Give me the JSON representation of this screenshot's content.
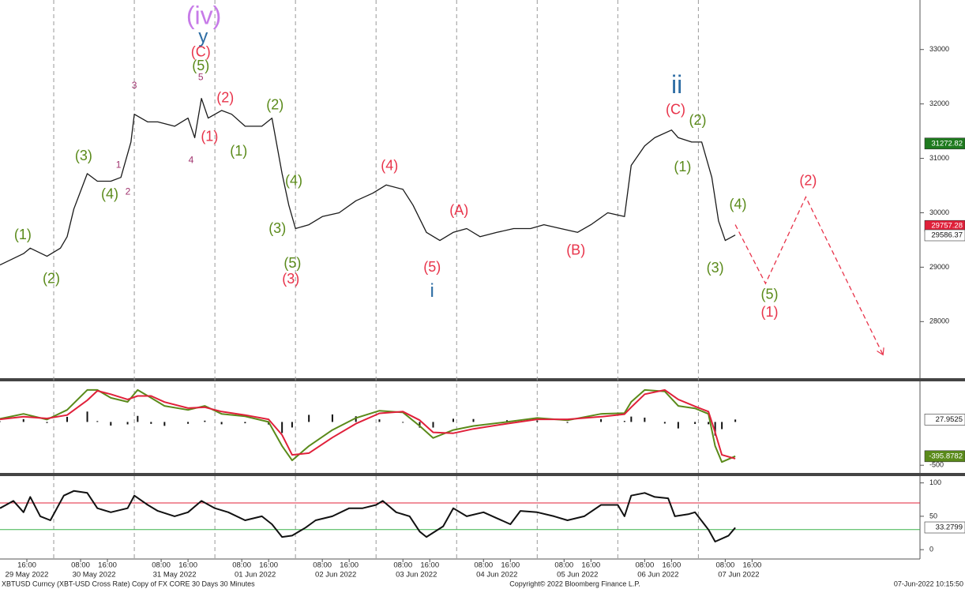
{
  "chart_data": [
    {
      "type": "line",
      "x": [
        8,
        15,
        17,
        22,
        26,
        28,
        30,
        34,
        37,
        41,
        44,
        47,
        48,
        52,
        55,
        60,
        64,
        66,
        68,
        70,
        74,
        77,
        81,
        86,
        89,
        92,
        94,
        96,
        100,
        104,
        109,
        114,
        119,
        123,
        128,
        131,
        135,
        139,
        143,
        147,
        151,
        156,
        161,
        166,
        170,
        175,
        180,
        184,
        189,
        194,
        196,
        200,
        203,
        208,
        210,
        214,
        217,
        220,
        222,
        224,
        227
      ],
      "series": [
        {
          "color": "#1a1a1a",
          "values": [
            29040,
            29250,
            29350,
            29200,
            29350,
            29560,
            30070,
            30720,
            30580,
            30580,
            30650,
            31300,
            31810,
            31670,
            31670,
            31590,
            31740,
            31380,
            32100,
            31740,
            31880,
            31810,
            31590,
            31590,
            31740,
            30720,
            30140,
            29710,
            29780,
            29930,
            30000,
            30220,
            30360,
            30510,
            30430,
            30140,
            29640,
            29490,
            29640,
            29710,
            29560,
            29640,
            29710,
            29710,
            29780,
            29710,
            29640,
            29780,
            30000,
            29930,
            30870,
            31230,
            31380,
            31520,
            31380,
            31300,
            31300,
            30650,
            29850,
            29490,
            29590
          ]
        }
      ],
      "xlim": [
        8,
        282
      ],
      "ylim": [
        26960,
        33910
      ],
      "yticks": [
        28000,
        29000,
        30000,
        31000,
        32000,
        33000
      ],
      "xticks": [
        {
          "value": 16,
          "label": "16:00"
        },
        {
          "value": 32,
          "label": "08:00"
        },
        {
          "value": 40,
          "label": "16:00"
        },
        {
          "value": 56,
          "label": "08:00"
        },
        {
          "value": 64,
          "label": "16:00"
        },
        {
          "value": 80,
          "label": "08:00"
        },
        {
          "value": 88,
          "label": "16:00"
        },
        {
          "value": 104,
          "label": "08:00"
        },
        {
          "value": 112,
          "label": "16:00"
        },
        {
          "value": 128,
          "label": "08:00"
        },
        {
          "value": 136,
          "label": "16:00"
        },
        {
          "value": 152,
          "label": "08:00"
        },
        {
          "value": 160,
          "label": "16:00"
        },
        {
          "value": 176,
          "label": "08:00"
        },
        {
          "value": 184,
          "label": "16:00"
        },
        {
          "value": 200,
          "label": "08:00"
        },
        {
          "value": 208,
          "label": "16:00"
        },
        {
          "value": 224,
          "label": "08:00"
        },
        {
          "value": 232,
          "label": "16:00"
        }
      ],
      "date_ticks": [
        {
          "value": 12,
          "label": "29 May 2022"
        },
        {
          "value": 36,
          "label": "30 May 2022"
        },
        {
          "value": 60,
          "label": "31 May 2022"
        },
        {
          "value": 84,
          "label": "01 Jun 2022"
        },
        {
          "value": 108,
          "label": "02 Jun 2022"
        },
        {
          "value": 132,
          "label": "03 Jun 2022"
        },
        {
          "value": 156,
          "label": "04 Jun 2022"
        },
        {
          "value": 180,
          "label": "05 Jun 2022"
        },
        {
          "value": 204,
          "label": "06 Jun 2022"
        },
        {
          "value": 228,
          "label": "07 Jun 2022"
        }
      ],
      "day_lines": [
        24,
        48,
        72,
        96,
        120,
        144,
        168,
        192,
        216
      ],
      "forecast": {
        "color": "#e8334a",
        "x": [
          227,
          236,
          248,
          271
        ],
        "values": [
          29780,
          28700,
          30290,
          27390
        ]
      },
      "price_tags": [
        {
          "value": 31272.82,
          "color": "#1e7a1e"
        },
        {
          "value": 29757.28,
          "color": "#e0203a"
        },
        {
          "value": 29586.37,
          "color": "#ffffff"
        }
      ],
      "annotations": [
        {
          "text": "(iv)",
          "x": 68.7,
          "y": 33590,
          "color": "#c77be8"
        },
        {
          "text": "y",
          "x": 68.5,
          "y": 33220,
          "color": "#2e6da4"
        },
        {
          "text": "(C)",
          "x": 67.8,
          "y": 32940,
          "color": "#e8334a"
        },
        {
          "text": "(5)",
          "x": 67.8,
          "y": 32690,
          "color": "#5a8a1a"
        },
        {
          "text": "5",
          "x": 67.8,
          "y": 32480,
          "color": "#a0336e"
        },
        {
          "text": "3",
          "x": 48,
          "y": 32330,
          "color": "#a0336e"
        },
        {
          "text": "4",
          "x": 64.9,
          "y": 30960,
          "color": "#a0336e"
        },
        {
          "text": "1",
          "x": 43.3,
          "y": 30870,
          "color": "#a0336e"
        },
        {
          "text": "2",
          "x": 46.1,
          "y": 30380,
          "color": "#a0336e"
        },
        {
          "text": "(2)",
          "x": 75.1,
          "y": 32100,
          "color": "#e8334a"
        },
        {
          "text": "(1)",
          "x": 70.4,
          "y": 31390,
          "color": "#e8334a"
        },
        {
          "text": "(1)",
          "x": 79.1,
          "y": 31120,
          "color": "#5a8a1a"
        },
        {
          "text": "(3)",
          "x": 32.9,
          "y": 31030,
          "color": "#5a8a1a"
        },
        {
          "text": "(4)",
          "x": 40.7,
          "y": 30330,
          "color": "#5a8a1a"
        },
        {
          "text": "(1)",
          "x": 14.8,
          "y": 29580,
          "color": "#5a8a1a"
        },
        {
          "text": "(2)",
          "x": 23.3,
          "y": 28780,
          "color": "#5a8a1a"
        },
        {
          "text": "(2)",
          "x": 89.9,
          "y": 31970,
          "color": "#5a8a1a"
        },
        {
          "text": "(4)",
          "x": 95.5,
          "y": 30580,
          "color": "#5a8a1a"
        },
        {
          "text": "(3)",
          "x": 90.6,
          "y": 29700,
          "color": "#5a8a1a"
        },
        {
          "text": "(5)",
          "x": 95.1,
          "y": 29060,
          "color": "#5a8a1a"
        },
        {
          "text": "(3)",
          "x": 94.6,
          "y": 28770,
          "color": "#e8334a"
        },
        {
          "text": "(4)",
          "x": 124,
          "y": 30850,
          "color": "#e8334a"
        },
        {
          "text": "(A)",
          "x": 144.7,
          "y": 30030,
          "color": "#e8334a"
        },
        {
          "text": "(5)",
          "x": 136.7,
          "y": 28990,
          "color": "#e8334a"
        },
        {
          "text": "i",
          "x": 136.7,
          "y": 28550,
          "color": "#2e6da4"
        },
        {
          "text": "(B)",
          "x": 179.5,
          "y": 29300,
          "color": "#e8334a"
        },
        {
          "text": "ii",
          "x": 209.6,
          "y": 32320,
          "color": "#2e6da4"
        },
        {
          "text": "(C)",
          "x": 209.2,
          "y": 31880,
          "color": "#e8334a"
        },
        {
          "text": "(2)",
          "x": 215.8,
          "y": 31690,
          "color": "#5a8a1a"
        },
        {
          "text": "(1)",
          "x": 211.3,
          "y": 30830,
          "color": "#5a8a1a"
        },
        {
          "text": "(4)",
          "x": 227.8,
          "y": 30140,
          "color": "#5a8a1a"
        },
        {
          "text": "(3)",
          "x": 221,
          "y": 28970,
          "color": "#5a8a1a"
        },
        {
          "text": "(5)",
          "x": 237.2,
          "y": 28490,
          "color": "#5a8a1a"
        },
        {
          "text": "(1)",
          "x": 237.2,
          "y": 28160,
          "color": "#e8334a"
        },
        {
          "text": "(2)",
          "x": 248.7,
          "y": 30580,
          "color": "#e8334a"
        }
      ]
    },
    {
      "type": "line",
      "x": [
        8,
        15,
        22,
        28,
        34,
        37,
        41,
        46,
        49,
        53,
        57,
        64,
        69,
        74,
        81,
        88,
        92,
        95,
        100,
        107,
        114,
        121,
        128,
        133,
        137,
        143,
        149,
        159,
        168,
        177,
        187,
        194,
        196,
        200,
        206,
        210,
        215,
        219,
        221,
        223,
        227
      ],
      "series": [
        {
          "color": "#5a8a1a",
          "values": [
            37,
            93,
            28,
            139,
            370,
            370,
            278,
            232,
            370,
            278,
            185,
            139,
            185,
            93,
            65,
            0,
            -278,
            -444,
            -278,
            -93,
            46,
            130,
            111,
            -46,
            -185,
            -93,
            -46,
            0,
            46,
            19,
            93,
            102,
            232,
            370,
            352,
            185,
            157,
            93,
            -278,
            -463,
            -396
          ]
        },
        {
          "color": "#e0203a",
          "values": [
            30,
            60,
            40,
            80,
            250,
            360,
            320,
            260,
            300,
            300,
            230,
            160,
            170,
            120,
            80,
            30,
            -150,
            -380,
            -360,
            -180,
            -20,
            100,
            120,
            20,
            -120,
            -130,
            -80,
            -20,
            30,
            30,
            60,
            90,
            170,
            320,
            370,
            260,
            180,
            120,
            -120,
            -380,
            -424
          ]
        }
      ],
      "histogram": {
        "color": "#111111",
        "values": [
          7,
          33,
          -12,
          59,
          120,
          10,
          -42,
          -28,
          70,
          -22,
          -45,
          -21,
          15,
          -27,
          -15,
          -30,
          -128,
          -64,
          82,
          87,
          66,
          30,
          -9,
          -66,
          -65,
          37,
          34,
          20,
          16,
          -11,
          33,
          12,
          62,
          50,
          -18,
          -75,
          -23,
          -27,
          -158,
          -83,
          28
        ]
      },
      "xlim": [
        8,
        282
      ],
      "ylim": [
        -580,
        460
      ],
      "yticks": [
        -500
      ],
      "price_tags": [
        {
          "value": 27.9525,
          "color": "#ffffff"
        },
        {
          "value": -395.8782,
          "color": "#5a8a1a"
        }
      ]
    },
    {
      "type": "line",
      "x": [
        8,
        12,
        15,
        17,
        20,
        23,
        27,
        30,
        34,
        37,
        41,
        46,
        48,
        52,
        55,
        60,
        64,
        68,
        72,
        76,
        81,
        86,
        89,
        92,
        95,
        99,
        102,
        107,
        112,
        116,
        120,
        122,
        126,
        130,
        133,
        135,
        140,
        143,
        147,
        152,
        156,
        160,
        163,
        168,
        173,
        177,
        182,
        187,
        192,
        194,
        196,
        200,
        203,
        207,
        209,
        213,
        215,
        219,
        221,
        225,
        227
      ],
      "series": [
        {
          "color": "#111111",
          "values": [
            62,
            73,
            56,
            79,
            50,
            44,
            81,
            88,
            85,
            62,
            56,
            62,
            81,
            67,
            58,
            50,
            56,
            73,
            62,
            56,
            44,
            50,
            38,
            19,
            21,
            33,
            44,
            50,
            62,
            62,
            67,
            73,
            56,
            50,
            27,
            19,
            35,
            62,
            50,
            56,
            47,
            38,
            58,
            56,
            50,
            44,
            50,
            67,
            67,
            50,
            81,
            85,
            79,
            77,
            50,
            53,
            56,
            30,
            12,
            21,
            33
          ]
        }
      ],
      "xlim": [
        8,
        282
      ],
      "ylim": [
        -14,
        109
      ],
      "yticks": [
        0,
        50,
        100
      ],
      "levels": [
        {
          "value": 70,
          "color": "#e0203a"
        },
        {
          "value": 30,
          "color": "#3cb44b"
        }
      ],
      "price_tags": [
        {
          "value": 33.2799,
          "color": "#ffffff"
        }
      ]
    }
  ],
  "footer": {
    "left": "XBTUSD Curncy (XBT-USD Cross Rate) Copy of FX CORE 30 Days 30 Minutes",
    "center": "Copyright© 2022 Bloomberg Finance L.P.",
    "right": "07-Jun-2022 10:15:50"
  }
}
